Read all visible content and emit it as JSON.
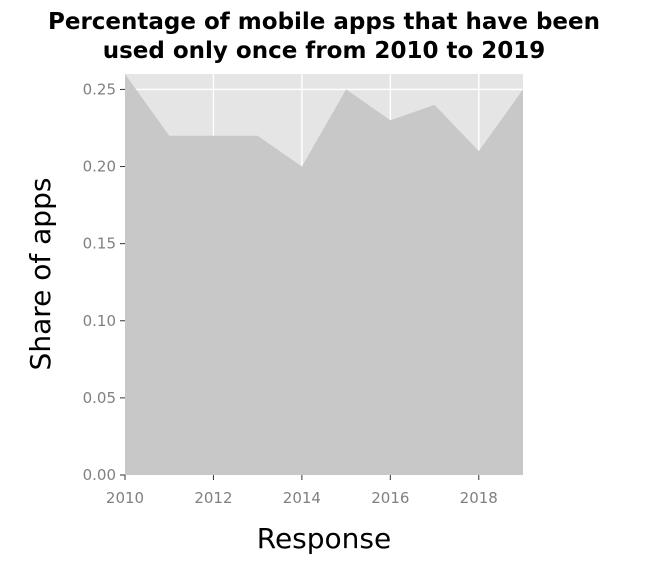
{
  "chart_data": {
    "type": "area",
    "title_lines": [
      "Percentage of mobile apps that have been",
      "used only once from 2010 to 2019"
    ],
    "xlabel": "Response",
    "ylabel": "Share of apps",
    "x": [
      2010,
      2011,
      2012,
      2013,
      2014,
      2015,
      2016,
      2017,
      2018,
      2019
    ],
    "values": [
      0.26,
      0.22,
      0.22,
      0.22,
      0.2,
      0.25,
      0.23,
      0.24,
      0.21,
      0.25
    ],
    "xlim": [
      2010,
      2019
    ],
    "ylim": [
      0,
      0.26
    ],
    "xticks": [
      2010,
      2012,
      2014,
      2016,
      2018
    ],
    "xtick_labels": [
      "2010",
      "2012",
      "2014",
      "2016",
      "2018"
    ],
    "yticks": [
      0,
      0.05,
      0.1,
      0.15,
      0.2,
      0.25
    ],
    "ytick_labels": [
      "0.00",
      "0.05",
      "0.10",
      "0.15",
      "0.20",
      "0.25"
    ],
    "grid": true,
    "colors": {
      "panel": "#e5e5e5",
      "fill": "#c8c8c8",
      "grid": "#ffffff",
      "tick": "#808080"
    }
  }
}
